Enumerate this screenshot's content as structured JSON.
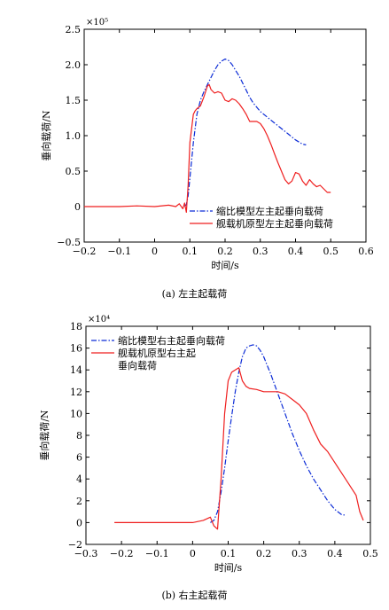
{
  "colors": {
    "scale": "#0b2bd6",
    "full": "#ef1f1f",
    "axis": "#000000"
  },
  "chart_data": [
    {
      "type": "line",
      "caption": "(a) 左主起载荷",
      "xlabel": "时间/s",
      "ylabel": "垂向载荷/N",
      "multiplier": "×10⁵",
      "xlim": [
        -0.2,
        0.6
      ],
      "ylim": [
        -0.5,
        2.5
      ],
      "xticks": [
        -0.2,
        -0.1,
        0,
        0.1,
        0.2,
        0.3,
        0.4,
        0.5,
        0.6
      ],
      "xtick_labels": [
        "−0.2",
        "−0.1",
        "0",
        "0.1",
        "0.2",
        "0.3",
        "0.4",
        "0.5",
        "0.6"
      ],
      "yticks": [
        -0.5,
        0,
        0.5,
        1.0,
        1.5,
        2.0,
        2.5
      ],
      "ytick_labels": [
        "−0.5",
        "0",
        "0.5",
        "1.0",
        "1.5",
        "2.0",
        "2.5"
      ],
      "legend_position": "bottom-right",
      "series": [
        {
          "name": "缩比模型左主起垂向载荷",
          "style": "dashdot",
          "color": "#0b2bd6",
          "x": [
            0.085,
            0.09,
            0.095,
            0.1,
            0.11,
            0.12,
            0.13,
            0.14,
            0.15,
            0.16,
            0.17,
            0.18,
            0.19,
            0.2,
            0.21,
            0.22,
            0.23,
            0.24,
            0.25,
            0.26,
            0.27,
            0.28,
            0.29,
            0.3,
            0.32,
            0.34,
            0.36,
            0.38,
            0.4,
            0.42,
            0.43
          ],
          "y": [
            0.0,
            0.03,
            0.15,
            0.4,
            0.9,
            1.3,
            1.5,
            1.62,
            1.72,
            1.82,
            1.92,
            2.0,
            2.05,
            2.08,
            2.06,
            2.0,
            1.92,
            1.84,
            1.74,
            1.64,
            1.54,
            1.46,
            1.4,
            1.34,
            1.26,
            1.18,
            1.1,
            1.02,
            0.94,
            0.88,
            0.87
          ]
        },
        {
          "name": "舰载机原型左主起垂向载荷",
          "style": "solid",
          "color": "#ef1f1f",
          "x": [
            -0.2,
            -0.1,
            -0.05,
            0.0,
            0.04,
            0.06,
            0.07,
            0.08,
            0.085,
            0.09,
            0.095,
            0.1,
            0.11,
            0.115,
            0.12,
            0.13,
            0.14,
            0.15,
            0.155,
            0.16,
            0.17,
            0.18,
            0.19,
            0.2,
            0.21,
            0.22,
            0.23,
            0.24,
            0.25,
            0.26,
            0.27,
            0.28,
            0.29,
            0.3,
            0.31,
            0.32,
            0.33,
            0.34,
            0.35,
            0.36,
            0.37,
            0.38,
            0.39,
            0.4,
            0.41,
            0.42,
            0.43,
            0.44,
            0.45,
            0.46,
            0.47,
            0.48,
            0.49,
            0.5
          ],
          "y": [
            0.0,
            0.0,
            0.01,
            0.0,
            0.02,
            0.0,
            0.04,
            -0.03,
            0.05,
            -0.08,
            0.3,
            0.9,
            1.3,
            1.35,
            1.38,
            1.42,
            1.55,
            1.7,
            1.72,
            1.65,
            1.6,
            1.62,
            1.6,
            1.5,
            1.48,
            1.52,
            1.5,
            1.45,
            1.38,
            1.3,
            1.2,
            1.2,
            1.2,
            1.17,
            1.1,
            1.0,
            0.88,
            0.75,
            0.62,
            0.5,
            0.38,
            0.32,
            0.36,
            0.48,
            0.46,
            0.36,
            0.3,
            0.38,
            0.32,
            0.28,
            0.3,
            0.25,
            0.2,
            0.2
          ]
        }
      ]
    },
    {
      "type": "line",
      "caption": "(b) 右主起载荷",
      "xlabel": "时间/s",
      "ylabel": "垂向载荷/N",
      "multiplier": "×10⁴",
      "xlim": [
        -0.3,
        0.5
      ],
      "ylim": [
        -2,
        18
      ],
      "xticks": [
        -0.3,
        -0.2,
        -0.1,
        0,
        0.1,
        0.2,
        0.3,
        0.4,
        0.5
      ],
      "xtick_labels": [
        "−0.3",
        "−0.2",
        "−0.1",
        "0",
        "0.1",
        "0.2",
        "0.3",
        "0.4",
        "0.5"
      ],
      "yticks": [
        -2,
        0,
        2,
        4,
        6,
        8,
        10,
        12,
        14,
        16,
        18
      ],
      "ytick_labels": [
        "−2",
        "0",
        "2",
        "4",
        "6",
        "8",
        "10",
        "12",
        "14",
        "16",
        "18"
      ],
      "legend_position": "top-left",
      "series": [
        {
          "name": "缩比模型右主起垂向载荷",
          "style": "dashdot",
          "color": "#0b2bd6",
          "x": [
            0.05,
            0.06,
            0.07,
            0.08,
            0.09,
            0.1,
            0.11,
            0.12,
            0.13,
            0.14,
            0.15,
            0.16,
            0.17,
            0.18,
            0.19,
            0.2,
            0.22,
            0.24,
            0.26,
            0.28,
            0.3,
            0.32,
            0.34,
            0.36,
            0.38,
            0.4,
            0.42,
            0.43
          ],
          "y": [
            0.0,
            0.2,
            1.0,
            2.8,
            5.0,
            7.5,
            9.8,
            12.0,
            13.8,
            15.2,
            16.0,
            16.2,
            16.3,
            16.2,
            15.8,
            15.2,
            13.6,
            11.8,
            10.0,
            8.2,
            6.6,
            5.2,
            4.0,
            3.0,
            2.0,
            1.2,
            0.7,
            0.7
          ]
        },
        {
          "name": "舰载机原型右主起\n垂向载荷",
          "style": "solid",
          "color": "#ef1f1f",
          "x": [
            -0.22,
            -0.1,
            0.0,
            0.03,
            0.05,
            0.06,
            0.07,
            0.08,
            0.09,
            0.1,
            0.11,
            0.12,
            0.13,
            0.14,
            0.15,
            0.16,
            0.18,
            0.2,
            0.22,
            0.24,
            0.26,
            0.28,
            0.3,
            0.32,
            0.34,
            0.36,
            0.38,
            0.4,
            0.42,
            0.44,
            0.46,
            0.47,
            0.48
          ],
          "y": [
            0.0,
            0.0,
            0.0,
            0.2,
            0.5,
            -0.3,
            -0.6,
            4.0,
            10.0,
            13.0,
            13.8,
            14.0,
            14.2,
            13.0,
            12.5,
            12.3,
            12.2,
            12.0,
            12.0,
            12.0,
            11.8,
            11.3,
            10.8,
            10.0,
            8.5,
            7.2,
            6.5,
            5.5,
            4.5,
            3.5,
            2.5,
            1.0,
            0.2
          ]
        }
      ]
    }
  ]
}
